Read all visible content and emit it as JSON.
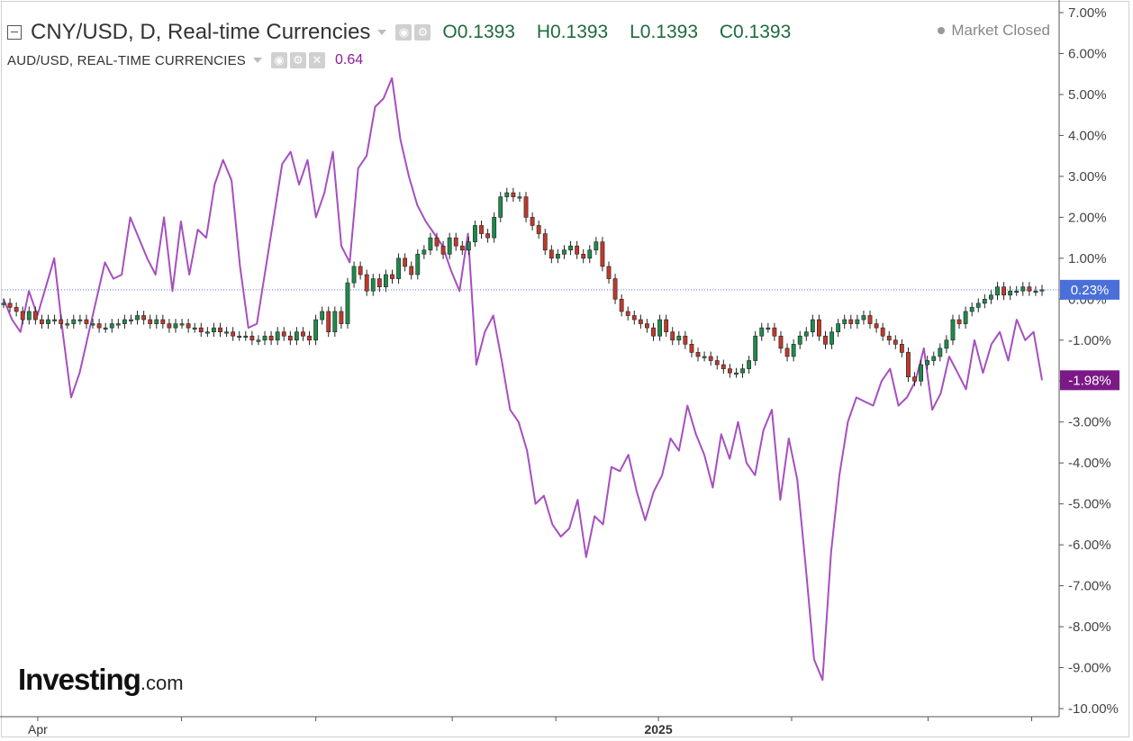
{
  "header": {
    "title": "CNY/USD, D, Real-time Currencies",
    "ohlc": {
      "open": "O0.1393",
      "high": "H0.1393",
      "low": "L0.1393",
      "close": "C0.1393"
    },
    "compare_title": "AUD/USD, REAL-TIME CURRENCIES",
    "compare_value": "0.64",
    "market_status": "Market Closed"
  },
  "logo": {
    "name": "Investing",
    "suffix": ".com"
  },
  "chart_data": {
    "type": "line",
    "yunit": "%",
    "ylim": [
      -10,
      7
    ],
    "y_ticks": [
      "7.00%",
      "6.00%",
      "5.00%",
      "4.00%",
      "3.00%",
      "2.00%",
      "1.00%",
      "0.00%",
      "-1.00%",
      "-2.00%",
      "-3.00%",
      "-4.00%",
      "-5.00%",
      "-6.00%",
      "-7.00%",
      "-8.00%",
      "-9.00%",
      "-10.00%"
    ],
    "x_ticks": [
      "Apr",
      "2025"
    ],
    "series": [
      {
        "name": "CNY/USD, D, Real-time Currencies",
        "style": "candlestick",
        "color_up": "#1e8a4c",
        "color_down": "#c0392b",
        "last_label": "0.23%",
        "last_color": "#4a6fd8",
        "values": [
          -0.1,
          -0.2,
          -0.3,
          -0.5,
          -0.3,
          -0.5,
          -0.6,
          -0.5,
          -0.5,
          -0.6,
          -0.6,
          -0.5,
          -0.5,
          -0.6,
          -0.6,
          -0.7,
          -0.7,
          -0.6,
          -0.6,
          -0.5,
          -0.5,
          -0.4,
          -0.5,
          -0.6,
          -0.5,
          -0.6,
          -0.7,
          -0.6,
          -0.6,
          -0.7,
          -0.7,
          -0.8,
          -0.8,
          -0.7,
          -0.8,
          -0.8,
          -0.9,
          -0.9,
          -0.9,
          -1.0,
          -1.0,
          -0.9,
          -1.0,
          -0.8,
          -0.9,
          -1.0,
          -0.8,
          -0.9,
          -1.0,
          -0.5,
          -0.3,
          -0.8,
          -0.3,
          -0.6,
          0.4,
          0.8,
          0.6,
          0.2,
          0.5,
          0.3,
          0.6,
          0.5,
          1.0,
          0.8,
          0.6,
          1.1,
          1.2,
          1.5,
          1.3,
          1.1,
          1.5,
          1.3,
          1.2,
          1.4,
          1.8,
          1.6,
          1.5,
          2.0,
          2.5,
          2.6,
          2.5,
          2.5,
          2.0,
          1.8,
          1.6,
          1.2,
          1.0,
          1.1,
          1.2,
          1.3,
          1.1,
          1.0,
          1.2,
          1.4,
          0.8,
          0.5,
          0.0,
          -0.3,
          -0.4,
          -0.5,
          -0.6,
          -0.7,
          -0.9,
          -0.5,
          -0.8,
          -1.0,
          -0.9,
          -1.1,
          -1.3,
          -1.4,
          -1.4,
          -1.5,
          -1.6,
          -1.7,
          -1.8,
          -1.8,
          -1.7,
          -1.5,
          -0.9,
          -0.7,
          -0.7,
          -0.9,
          -1.2,
          -1.4,
          -1.1,
          -0.9,
          -0.8,
          -0.5,
          -0.9,
          -1.1,
          -0.8,
          -0.6,
          -0.5,
          -0.6,
          -0.5,
          -0.4,
          -0.6,
          -0.7,
          -0.9,
          -1.0,
          -1.1,
          -1.3,
          -1.9,
          -2.0,
          -1.6,
          -1.5,
          -1.4,
          -1.2,
          -1.0,
          -0.5,
          -0.6,
          -0.3,
          -0.2,
          -0.1,
          0.0,
          0.1,
          0.3,
          0.1,
          0.2,
          0.2,
          0.3,
          0.2,
          0.2,
          0.23
        ]
      },
      {
        "name": "AUD/USD, REAL-TIME CURRENCIES",
        "style": "line",
        "color": "#a64fbf",
        "last_label": "-1.98%",
        "last_color": "#7b1a86",
        "values": [
          0.0,
          -0.5,
          -0.8,
          0.2,
          -0.4,
          0.3,
          1.0,
          -0.8,
          -2.4,
          -1.8,
          -0.9,
          0.0,
          0.9,
          0.5,
          0.6,
          2.0,
          1.5,
          1.0,
          0.6,
          2.0,
          0.2,
          1.9,
          0.6,
          1.7,
          1.5,
          2.8,
          3.4,
          2.9,
          0.8,
          -0.7,
          -0.6,
          0.7,
          2.0,
          3.3,
          3.6,
          2.8,
          3.4,
          2.0,
          2.6,
          3.6,
          1.3,
          0.9,
          3.2,
          3.5,
          4.7,
          4.9,
          5.4,
          3.9,
          3.0,
          2.3,
          1.9,
          1.6,
          1.3,
          0.7,
          0.2,
          1.6,
          -1.6,
          -0.8,
          -0.4,
          -1.5,
          -2.7,
          -3.0,
          -3.7,
          -5.0,
          -4.8,
          -5.5,
          -5.8,
          -5.6,
          -4.9,
          -6.3,
          -5.3,
          -5.5,
          -4.1,
          -4.2,
          -3.8,
          -4.7,
          -5.4,
          -4.7,
          -4.3,
          -3.4,
          -3.7,
          -2.6,
          -3.3,
          -3.8,
          -4.6,
          -3.3,
          -3.9,
          -3.0,
          -4.0,
          -4.3,
          -3.2,
          -2.7,
          -4.9,
          -3.4,
          -4.4,
          -6.5,
          -8.8,
          -9.3,
          -6.2,
          -4.3,
          -3.0,
          -2.4,
          -2.5,
          -2.6,
          -2.0,
          -1.7,
          -2.6,
          -2.4,
          -2.0,
          -1.2,
          -2.7,
          -2.3,
          -1.4,
          -1.8,
          -2.2,
          -1.0,
          -1.8,
          -1.1,
          -0.8,
          -1.5,
          -0.5,
          -1.0,
          -0.8,
          -1.98
        ]
      }
    ],
    "title": "CNY/USD, D, Real-time Currencies",
    "grid": false,
    "price_line": 0.23
  }
}
